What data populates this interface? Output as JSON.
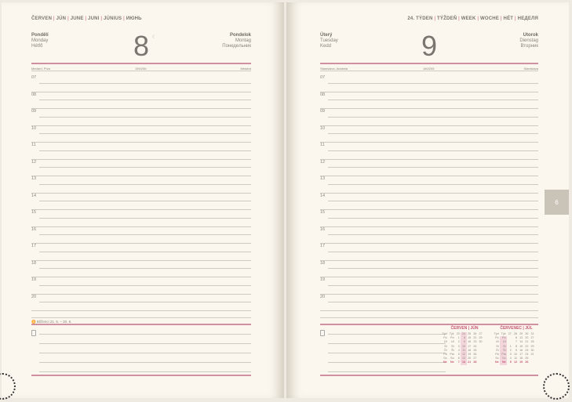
{
  "left": {
    "header": [
      "ČERVEN",
      "JÚN",
      "JUNE",
      "JUNI",
      "JÚNIUS",
      "ИЮНЬ"
    ],
    "day_number": "8",
    "moon": "☾",
    "names_left": [
      "Pondělí",
      "Monday",
      "Hétfő"
    ],
    "names_right": [
      "Pondelok",
      "Montag",
      "Понедельник"
    ],
    "nameday_left": "Medard, Pîva",
    "day_count": "159/206",
    "nameday_right": "Medard",
    "zodiac": "♊ Blíženci 21. 5. – 20. 6."
  },
  "right": {
    "header": [
      "24. TÝDEN",
      "TÝŽDEŇ",
      "WEEK",
      "WOCHE",
      "HÉT",
      "НЕДЕЛЯ"
    ],
    "day_number": "9",
    "names_left": [
      "Úterý",
      "Tuesday",
      "Kedd"
    ],
    "names_right": [
      "Utorok",
      "Dienstag",
      "Вторник"
    ],
    "nameday_left": "Stanislava, Anabela",
    "day_count": "160/205",
    "nameday_right": "Stanislava"
  },
  "hours": [
    "07",
    "08",
    "09",
    "10",
    "11",
    "12",
    "13",
    "14",
    "15",
    "16",
    "17",
    "18",
    "19",
    "20"
  ],
  "tab_label": "6",
  "calendars": [
    {
      "title": "ČERVEN | JÚN",
      "weeks": [
        "23",
        "24",
        "25",
        "26",
        "27"
      ],
      "highlight_col": 1,
      "rows": [
        [
          "Po",
          "Po",
          "1",
          "8",
          "15",
          "22",
          "29"
        ],
        [
          "Út",
          "Ut",
          "2",
          "9",
          "16",
          "23",
          "30"
        ],
        [
          "St",
          "St",
          "3",
          "10",
          "17",
          "24",
          ""
        ],
        [
          "Čt",
          "Št",
          "4",
          "11",
          "18",
          "25",
          ""
        ],
        [
          "Pá",
          "Pia",
          "5",
          "12",
          "19",
          "26",
          ""
        ],
        [
          "So",
          "So",
          "6",
          "13",
          "20",
          "27",
          ""
        ],
        [
          "Ne",
          "Ne",
          "7",
          "14",
          "21",
          "28",
          ""
        ]
      ]
    },
    {
      "title": "ČERVENEC | JÚL",
      "weeks": [
        "27",
        "28",
        "29",
        "30",
        "31"
      ],
      "highlight_col": -1,
      "rows": [
        [
          "Po",
          "Po",
          "",
          "6",
          "13",
          "20",
          "27"
        ],
        [
          "Út",
          "Ut",
          "",
          "7",
          "14",
          "21",
          "28"
        ],
        [
          "St",
          "St",
          "1",
          "8",
          "15",
          "22",
          "29"
        ],
        [
          "Čt",
          "Št",
          "2",
          "9",
          "16",
          "23",
          "30"
        ],
        [
          "Pá",
          "Pia",
          "3",
          "10",
          "17",
          "24",
          "31"
        ],
        [
          "So",
          "So",
          "4",
          "11",
          "18",
          "25",
          ""
        ],
        [
          "Ne",
          "Ne",
          "5",
          "12",
          "19",
          "26",
          ""
        ]
      ]
    }
  ],
  "week_header": [
    "Týd",
    "Týž"
  ],
  "colors": {
    "accent": "#c6556f",
    "rule": "#cf90a0",
    "paper": "#fbf7ee"
  }
}
